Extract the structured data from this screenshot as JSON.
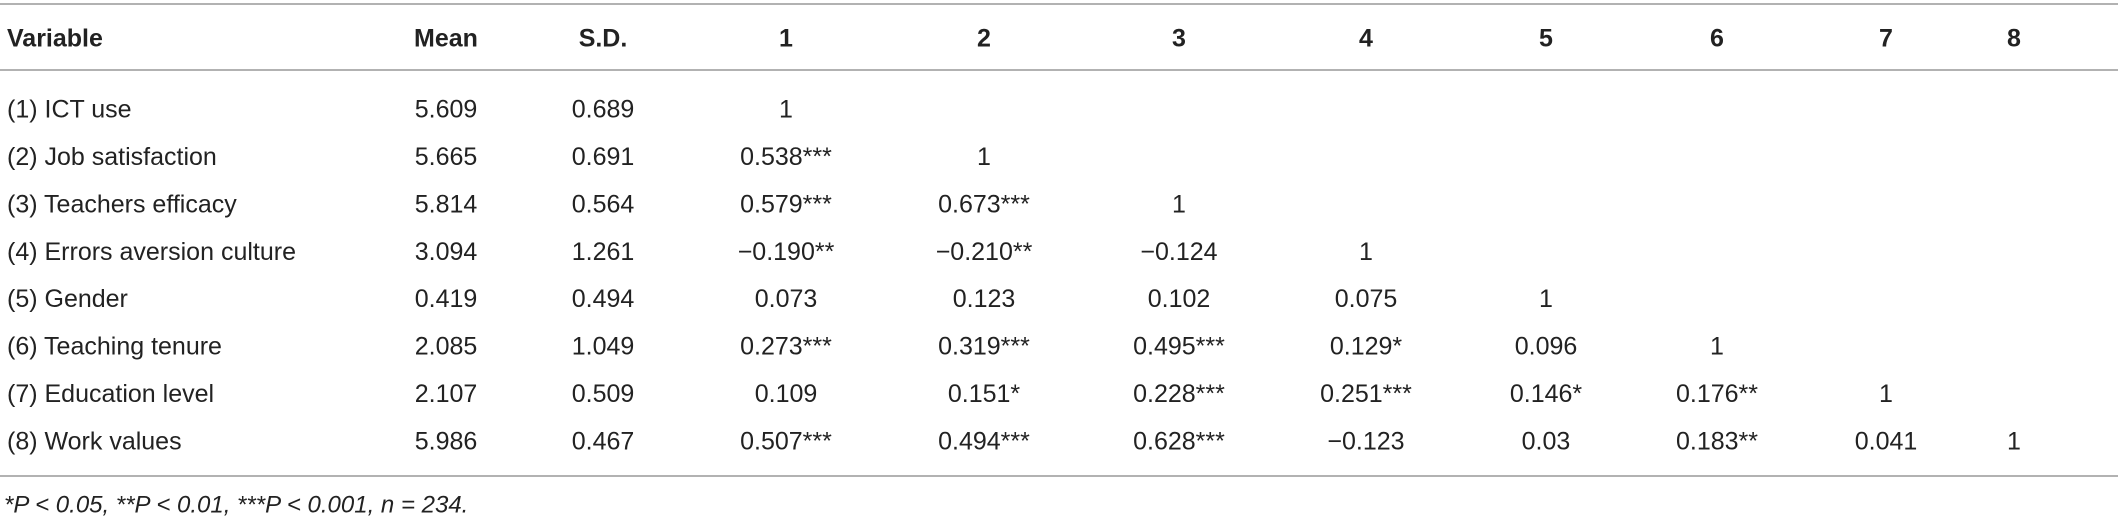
{
  "table": {
    "header": [
      "Variable",
      "Mean",
      "S.D.",
      "1",
      "2",
      "3",
      "4",
      "5",
      "6",
      "7",
      "8"
    ],
    "rows": [
      [
        "(1) ICT use",
        "5.609",
        "0.689",
        "1"
      ],
      [
        "(2) Job satisfaction",
        "5.665",
        "0.691",
        "0.538***",
        "1"
      ],
      [
        "(3) Teachers efficacy",
        "5.814",
        "0.564",
        "0.579***",
        "0.673***",
        "1"
      ],
      [
        "(4) Errors aversion culture",
        "3.094",
        "1.261",
        "−0.190**",
        "−0.210**",
        "−0.124",
        "1"
      ],
      [
        "(5) Gender",
        "0.419",
        "0.494",
        "0.073",
        "0.123",
        "0.102",
        "0.075",
        "1"
      ],
      [
        "(6) Teaching tenure",
        "2.085",
        "1.049",
        "0.273***",
        "0.319***",
        "0.495***",
        "0.129*",
        "0.096",
        "1"
      ],
      [
        "(7) Education level",
        "2.107",
        "0.509",
        "0.109",
        "0.151*",
        "0.228***",
        "0.251***",
        "0.146*",
        "0.176**",
        "1"
      ],
      [
        "(8) Work values",
        "5.986",
        "0.467",
        "0.507***",
        "0.494***",
        "0.628***",
        "−0.123",
        "0.03",
        "0.183**",
        "0.041",
        "1"
      ]
    ],
    "footnote": "*P < 0.05, **P < 0.01, ***P < 0.001, n = 234."
  }
}
